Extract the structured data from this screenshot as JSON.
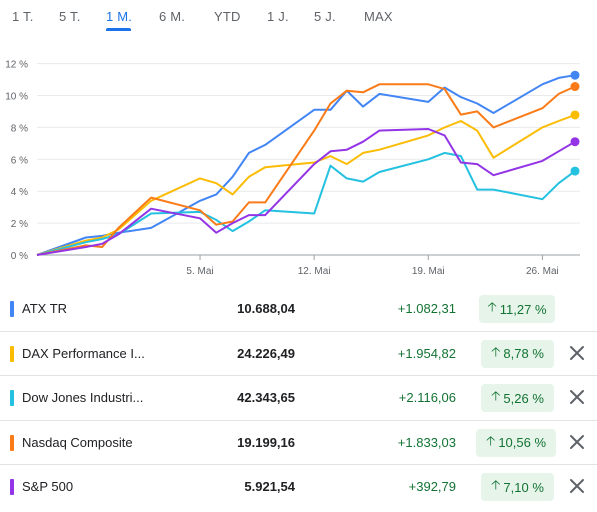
{
  "range_tabs": [
    {
      "label": "1 T.",
      "active": false
    },
    {
      "label": "5 T.",
      "active": false
    },
    {
      "label": "1 M.",
      "active": true
    },
    {
      "label": "6 M.",
      "active": false
    },
    {
      "label": "YTD",
      "active": false
    },
    {
      "label": "1 J.",
      "active": false
    },
    {
      "label": "5 J.",
      "active": false
    },
    {
      "label": "MAX",
      "active": false
    }
  ],
  "chart_data": {
    "type": "line",
    "y_tick_labels": [
      "0 %",
      "2 %",
      "4 %",
      "6 %",
      "8 %",
      "10 %",
      "12 %"
    ],
    "y_ticks": [
      0,
      2,
      4,
      6,
      8,
      10,
      12
    ],
    "ylim": [
      0,
      12.6
    ],
    "x_tick_labels": [
      "5. Mai",
      "12. Mai",
      "19. Mai",
      "26. Mai"
    ],
    "x_ticks": [
      "2025-05-05",
      "2025-05-12",
      "2025-05-19",
      "2025-05-26"
    ],
    "x": [
      "2025-04-25",
      "2025-04-28",
      "2025-04-29",
      "2025-04-30",
      "2025-05-02",
      "2025-05-05",
      "2025-05-06",
      "2025-05-07",
      "2025-05-08",
      "2025-05-09",
      "2025-05-12",
      "2025-05-13",
      "2025-05-14",
      "2025-05-15",
      "2025-05-16",
      "2025-05-19",
      "2025-05-20",
      "2025-05-21",
      "2025-05-22",
      "2025-05-23",
      "2025-05-26",
      "2025-05-27",
      "2025-05-28"
    ],
    "grid": "horizontal",
    "series": [
      {
        "name": "ATX TR",
        "color": "#4285f4",
        "values": [
          0,
          1.1,
          1.2,
          1.4,
          1.7,
          3.4,
          3.8,
          4.9,
          6.4,
          6.9,
          9.1,
          9.1,
          10.3,
          9.3,
          10.1,
          9.6,
          10.5,
          9.9,
          9.5,
          8.9,
          10.7,
          11.1,
          11.27
        ]
      },
      {
        "name": "DAX Performance Index",
        "color": "#fbbc04",
        "values": [
          0,
          0.9,
          1.1,
          1.6,
          3.4,
          4.8,
          4.5,
          3.8,
          4.9,
          5.5,
          5.8,
          6.2,
          5.7,
          6.4,
          6.6,
          7.5,
          8.0,
          8.4,
          7.8,
          6.1,
          8.0,
          8.4,
          8.78
        ]
      },
      {
        "name": "Dow Jones Industrial Average",
        "color": "#24c1e0",
        "values": [
          0,
          0.8,
          1.0,
          1.3,
          2.6,
          2.7,
          2.2,
          1.5,
          2.1,
          2.8,
          2.6,
          5.6,
          4.8,
          4.6,
          5.2,
          6.0,
          6.4,
          6.2,
          4.1,
          4.1,
          3.5,
          4.5,
          5.26
        ]
      },
      {
        "name": "Nasdaq Composite",
        "color": "#fa7b17",
        "values": [
          0,
          0.6,
          0.5,
          1.7,
          3.6,
          2.8,
          1.9,
          2.1,
          3.3,
          3.3,
          7.8,
          9.5,
          10.3,
          10.2,
          10.7,
          10.7,
          10.4,
          8.8,
          9.0,
          8.0,
          9.2,
          10.1,
          10.56
        ]
      },
      {
        "name": "S&P 500",
        "color": "#9334e6",
        "values": [
          0,
          0.5,
          0.7,
          1.3,
          2.9,
          2.3,
          1.4,
          2.0,
          2.5,
          2.5,
          5.7,
          6.5,
          6.6,
          7.1,
          7.8,
          7.9,
          7.5,
          5.8,
          5.7,
          5.0,
          5.9,
          6.5,
          7.1
        ]
      }
    ]
  },
  "instruments": [
    {
      "name": "ATX TR",
      "color": "#4285f4",
      "value": "10.688,04",
      "change": "+1.082,31",
      "percent": "11,27 %",
      "removable": false
    },
    {
      "name": "DAX Performance I...",
      "color": "#fbbc04",
      "value": "24.226,49",
      "change": "+1.954,82",
      "percent": "8,78 %",
      "removable": true
    },
    {
      "name": "Dow Jones Industri...",
      "color": "#24c1e0",
      "value": "42.343,65",
      "change": "+2.116,06",
      "percent": "5,26 %",
      "removable": true
    },
    {
      "name": "Nasdaq Composite",
      "color": "#fa7b17",
      "value": "19.199,16",
      "change": "+1.833,03",
      "percent": "10,56 %",
      "removable": true
    },
    {
      "name": "S&P 500",
      "color": "#9334e6",
      "value": "5.921,54",
      "change": "+392,79",
      "percent": "7,10 %",
      "removable": true
    }
  ],
  "icons": {
    "increase": "arrow-up-icon",
    "remove": "close-icon"
  }
}
